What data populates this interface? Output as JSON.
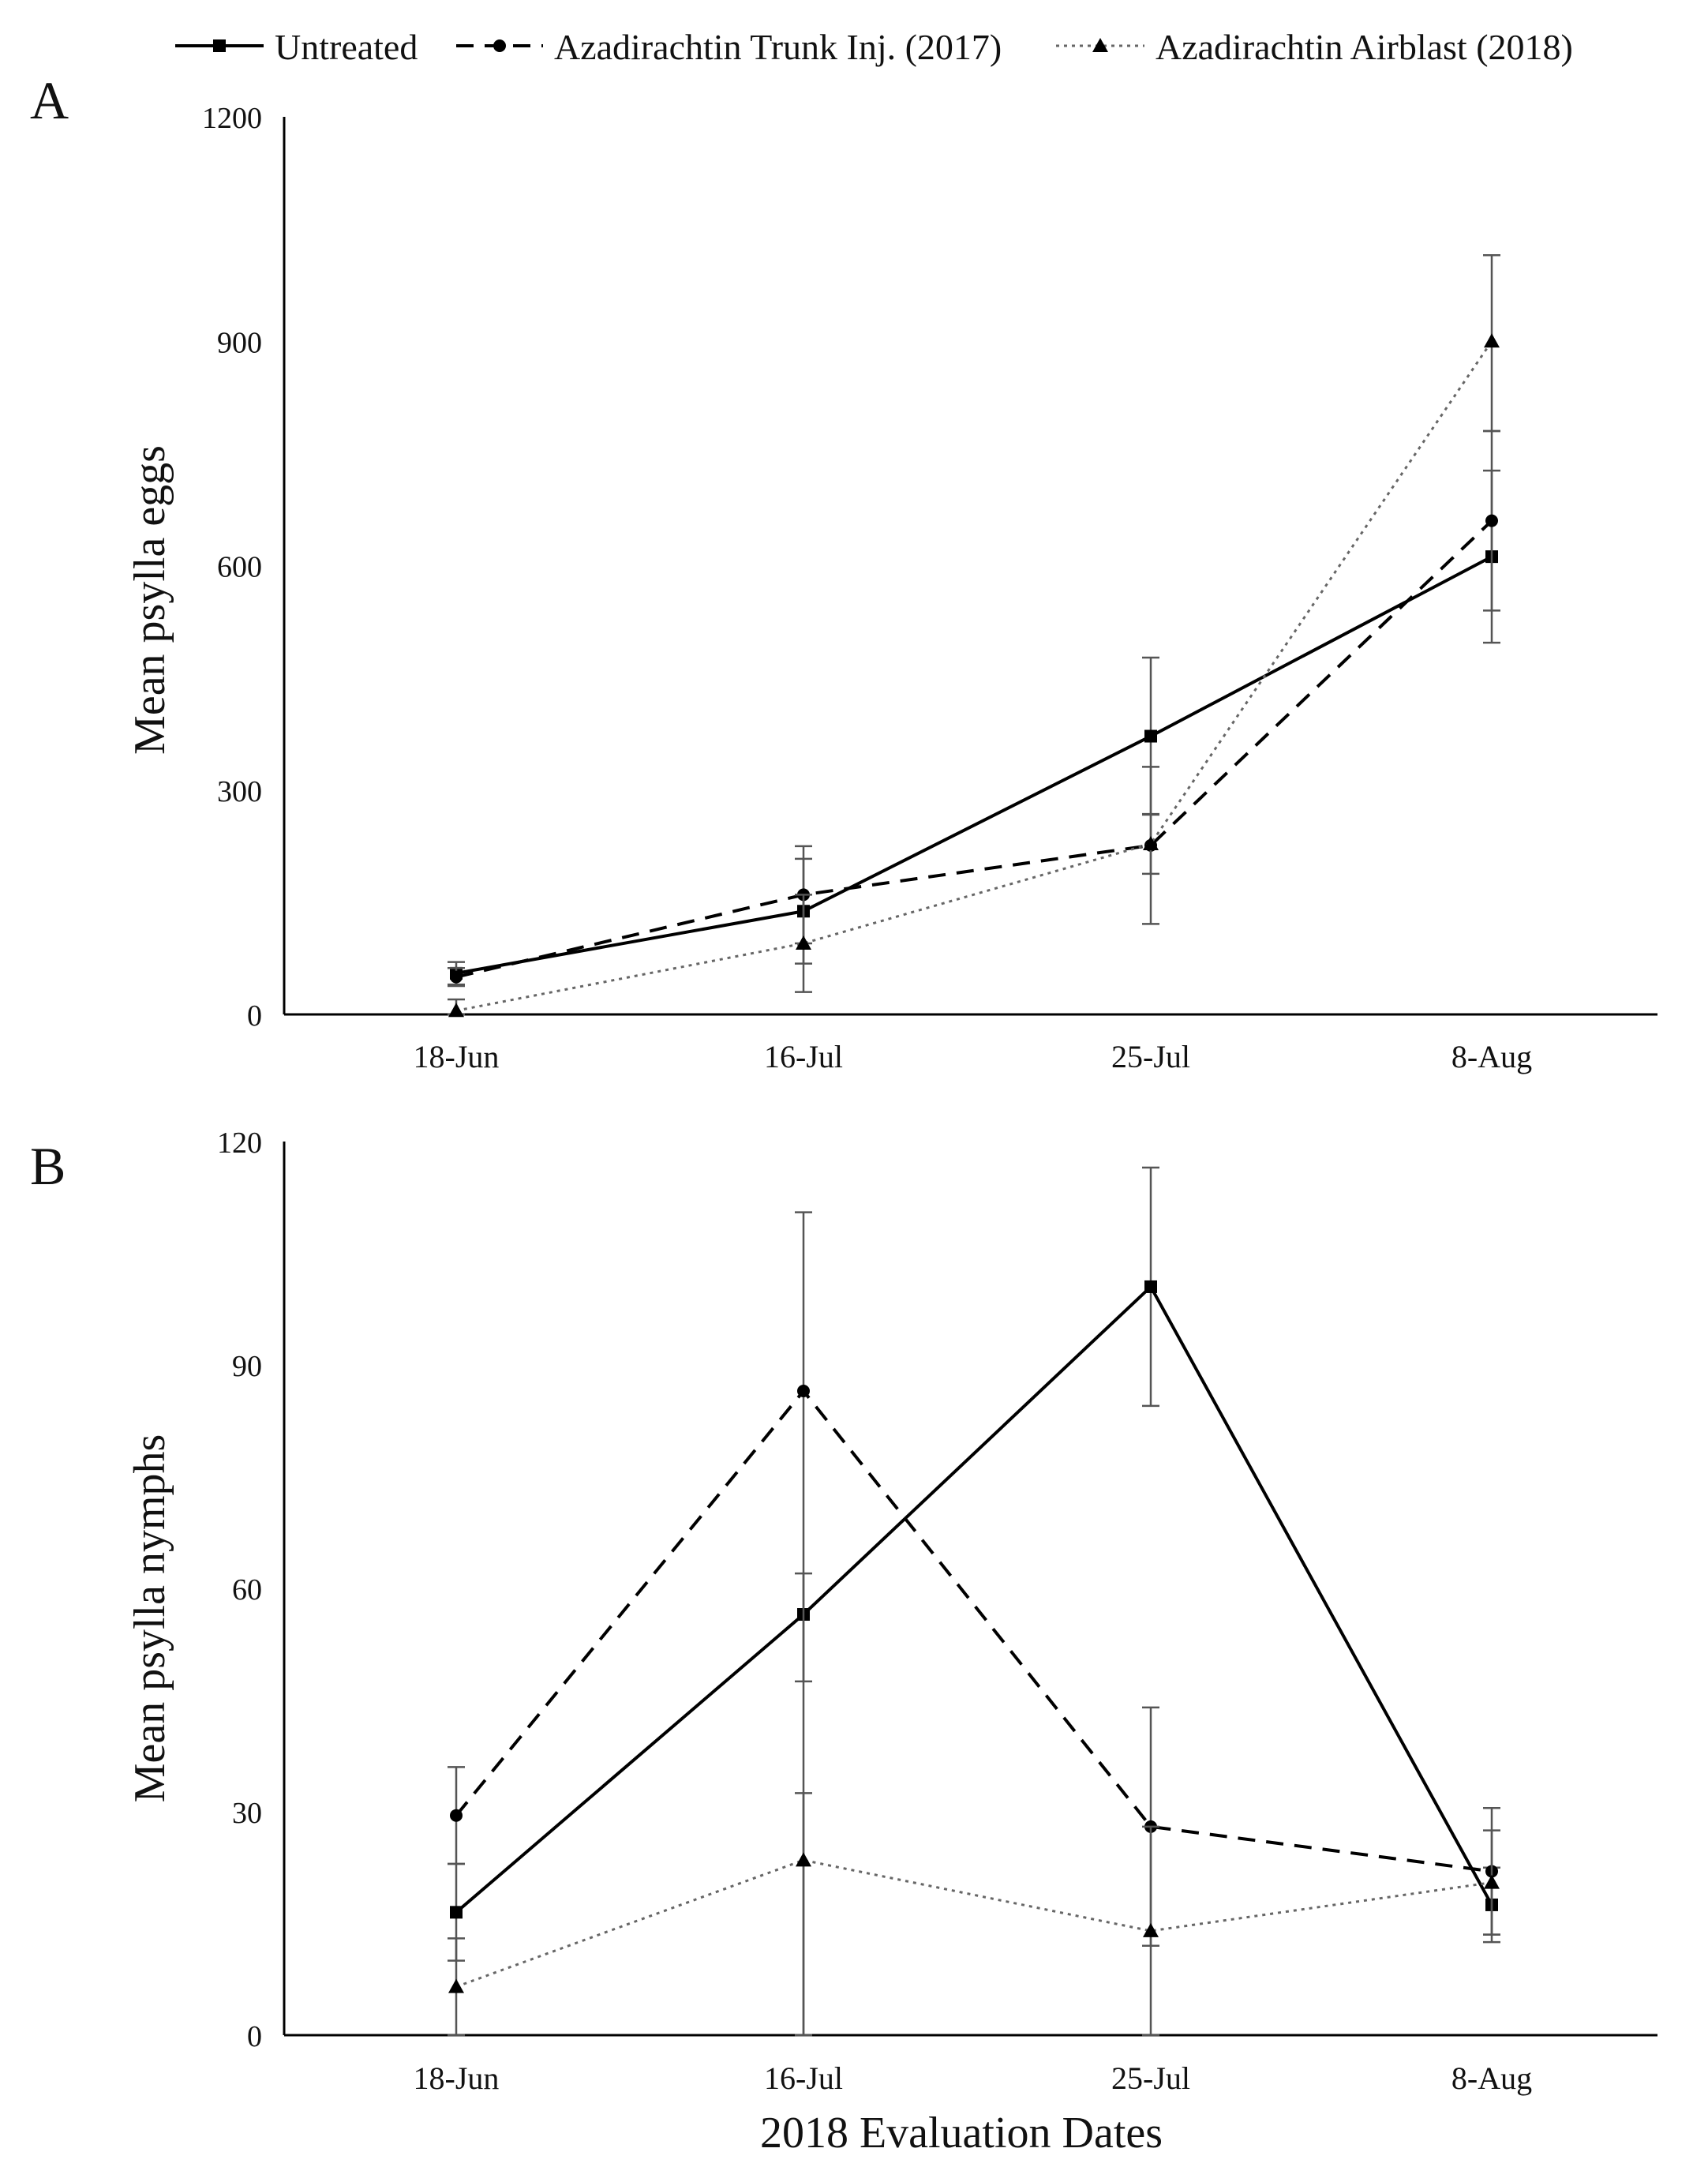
{
  "legend": {
    "items": [
      {
        "label": "Untreated",
        "style": "solid",
        "marker": "square"
      },
      {
        "label": "Azadirachtin Trunk Inj. (2017)",
        "style": "dashed",
        "marker": "circle"
      },
      {
        "label": "Azadirachtin Airblast (2018)",
        "style": "dotted",
        "marker": "triangle"
      }
    ]
  },
  "colors": {
    "ink": "#000000",
    "error_bar": "#555555",
    "dotted_series": "#666666"
  },
  "chart_data": [
    {
      "panel": "A",
      "type": "line",
      "ylabel": "Mean psylla eggs",
      "xlabel": "",
      "categories": [
        "18-Jun",
        "16-Jul",
        "25-Jul",
        "8-Aug"
      ],
      "ylim": [
        0,
        1200
      ],
      "yticks": [
        0,
        300,
        600,
        900,
        1200
      ],
      "series": [
        {
          "name": "Untreated",
          "values": [
            55,
            138,
            372,
            612
          ],
          "err_low": [
            15,
            70,
            105,
            115
          ],
          "err_high": [
            15,
            70,
            105,
            115
          ]
        },
        {
          "name": "Azadirachtin Trunk Inj. (2017)",
          "values": [
            50,
            160,
            226,
            660
          ],
          "err_low": [
            12,
            65,
            105,
            120
          ],
          "err_high": [
            12,
            65,
            105,
            120
          ]
        },
        {
          "name": "Azadirachtin Airblast (2018)",
          "values": [
            5,
            95,
            228,
            900
          ],
          "err_low": [
            5,
            65,
            40,
            120
          ],
          "err_high": [
            15,
            65,
            40,
            115
          ]
        }
      ],
      "grid": false
    },
    {
      "panel": "B",
      "type": "line",
      "ylabel": "Mean psylla nymphs",
      "xlabel": "2018 Evaluation Dates",
      "categories": [
        "18-Jun",
        "16-Jul",
        "25-Jul",
        "8-Aug"
      ],
      "ylim": [
        0,
        120
      ],
      "yticks": [
        0,
        30,
        60,
        90,
        120
      ],
      "series": [
        {
          "name": "Untreated",
          "values": [
            16.5,
            56.5,
            100.5,
            17.5
          ],
          "err_low": [
            6.5,
            56.5,
            16,
            5
          ],
          "err_high": [
            6.5,
            5.5,
            16,
            5
          ]
        },
        {
          "name": "Azadirachtin Trunk Inj. (2017)",
          "values": [
            29.5,
            86.5,
            28,
            22
          ],
          "err_low": [
            6.5,
            39,
            16,
            8.5
          ],
          "err_high": [
            6.5,
            24,
            16,
            8.5
          ]
        },
        {
          "name": "Azadirachtin Airblast (2018)",
          "values": [
            6.5,
            23.5,
            14,
            20.5
          ],
          "err_low": [
            6.5,
            23.5,
            14,
            7
          ],
          "err_high": [
            6.5,
            9,
            14,
            7
          ]
        }
      ],
      "grid": false
    }
  ],
  "panel_labels": [
    "A",
    "B"
  ]
}
